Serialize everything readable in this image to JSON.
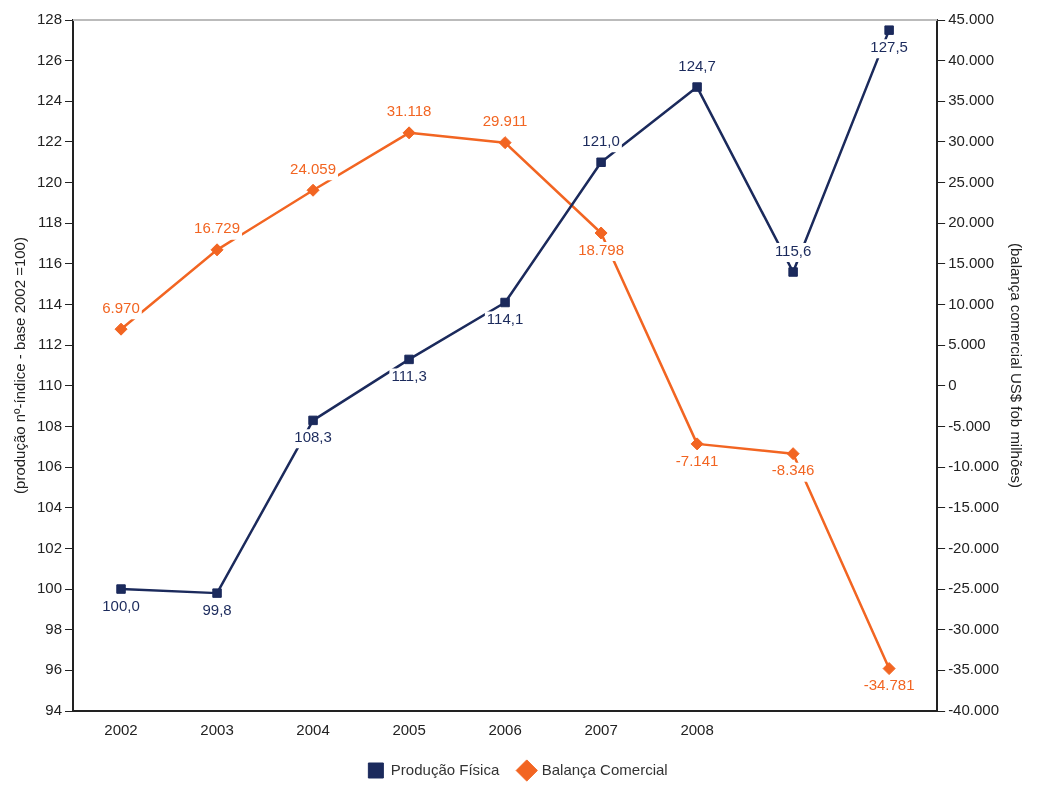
{
  "chart_data": {
    "type": "line",
    "categories": [
      "2002",
      "2003",
      "2004",
      "2005",
      "2006",
      "2007",
      "2008",
      null,
      null
    ],
    "ylabel": "(produção nº-índice - base 2002 =100)",
    "y2label": "(balança comercial US$ fob milhões)",
    "ylim": [
      94,
      128
    ],
    "yticks": [
      94,
      96,
      98,
      100,
      102,
      104,
      106,
      108,
      110,
      112,
      114,
      116,
      118,
      120,
      122,
      124,
      126,
      128
    ],
    "y2lim": [
      -40000,
      45000
    ],
    "y2ticks": [
      {
        "value": -40000,
        "label": "-40.000"
      },
      {
        "value": -35000,
        "label": "-35.000"
      },
      {
        "value": -30000,
        "label": "-30.000"
      },
      {
        "value": -25000,
        "label": "-25.000"
      },
      {
        "value": -20000,
        "label": "-20.000"
      },
      {
        "value": -15000,
        "label": "-15.000"
      },
      {
        "value": -10000,
        "label": "-10.000"
      },
      {
        "value": -5000,
        "label": "-5.000"
      },
      0,
      {
        "value": 5000,
        "label": "5.000"
      },
      {
        "value": 10000,
        "label": "10.000"
      },
      {
        "value": 15000,
        "label": "15.000"
      },
      {
        "value": 20000,
        "label": "20.000"
      },
      {
        "value": 25000,
        "label": "25.000"
      },
      {
        "value": 30000,
        "label": "30.000"
      },
      {
        "value": 35000,
        "label": "35.000"
      },
      {
        "value": 40000,
        "label": "40.000"
      },
      {
        "value": 45000,
        "label": "45.000"
      }
    ],
    "grid": false,
    "legend": "bottom",
    "line_style": "solid",
    "series": [
      {
        "name": "Produção Física",
        "color": "#1b2a5c",
        "marker": "square",
        "values": [
          100.0,
          99.8,
          108.3,
          111.3,
          114.1,
          121.0,
          124.7,
          115.6,
          127.5
        ],
        "value_labels": [
          "100,0",
          "99,8",
          "108,3",
          "111,3",
          "114,1",
          "121,0",
          "124,7",
          "115,6",
          "127,5"
        ]
      },
      {
        "name": "Balança Comercial",
        "color": "#f26522",
        "marker": "diamond",
        "axis": "y2",
        "values": [
          6970,
          16729,
          24059,
          31118,
          29911,
          18798,
          -7141,
          -8346,
          -34781
        ],
        "value_labels": [
          "6.970",
          "16.729",
          "24.059",
          "31.118",
          "29.911",
          "18.798",
          "-7.141",
          "-8.346",
          "-34.781"
        ]
      }
    ]
  }
}
